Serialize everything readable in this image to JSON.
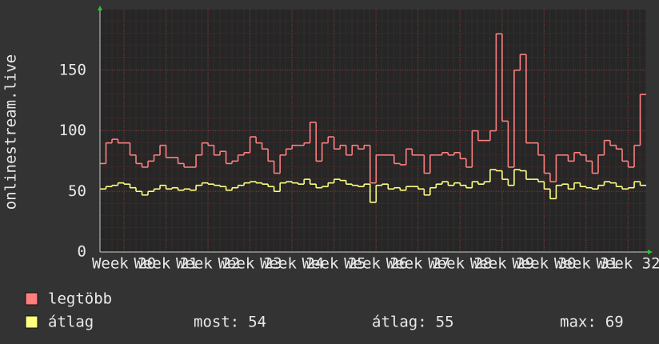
{
  "chart_data": {
    "type": "line",
    "y_label": "onlinestream.live",
    "x": [
      0,
      1,
      2,
      3,
      4,
      5,
      6,
      7,
      8,
      9,
      10,
      11,
      12,
      13,
      14,
      15,
      16,
      17,
      18,
      19,
      20,
      21,
      22,
      23,
      24,
      25,
      26,
      27,
      28,
      29,
      30,
      31,
      32,
      33,
      34,
      35,
      36,
      37,
      38,
      39,
      40,
      41,
      42,
      43,
      44,
      45,
      46,
      47,
      48,
      49,
      50,
      51,
      52,
      53,
      54,
      55,
      56,
      57,
      58,
      59,
      60,
      61,
      62,
      63,
      64,
      65,
      66,
      67,
      68,
      69,
      70,
      71,
      72,
      73,
      74,
      75,
      76,
      77,
      78,
      79,
      80,
      81,
      82,
      83,
      84,
      85,
      86,
      87,
      88,
      89,
      90
    ],
    "xlim": [
      0,
      91
    ],
    "xticks": [
      {
        "value": 4,
        "label": "Week 20"
      },
      {
        "value": 11,
        "label": "Week 21"
      },
      {
        "value": 18,
        "label": "Week 22"
      },
      {
        "value": 25,
        "label": "Week 23"
      },
      {
        "value": 32,
        "label": "Week 24"
      },
      {
        "value": 39,
        "label": "Week 25"
      },
      {
        "value": 46,
        "label": "Week 26"
      },
      {
        "value": 53,
        "label": "Week 27"
      },
      {
        "value": 60,
        "label": "Week 28"
      },
      {
        "value": 67,
        "label": "Week 29"
      },
      {
        "value": 74,
        "label": "Week 30"
      },
      {
        "value": 81,
        "label": "Week 31"
      },
      {
        "value": 88,
        "label": "Week 32"
      }
    ],
    "ylim": [
      0,
      200
    ],
    "yticks": [
      0,
      50,
      100,
      150
    ],
    "grid": true,
    "series": [
      {
        "name": "legtöbb",
        "color": "#ff7f7f",
        "values": [
          73,
          90,
          93,
          90,
          90,
          80,
          73,
          70,
          75,
          80,
          88,
          78,
          78,
          73,
          70,
          70,
          80,
          90,
          88,
          80,
          83,
          73,
          75,
          80,
          82,
          95,
          90,
          85,
          75,
          65,
          80,
          85,
          88,
          88,
          90,
          107,
          75,
          90,
          95,
          85,
          88,
          80,
          88,
          85,
          88,
          57,
          80,
          80,
          80,
          73,
          72,
          85,
          80,
          80,
          65,
          80,
          80,
          82,
          80,
          82,
          77,
          70,
          100,
          92,
          92,
          100,
          180,
          108,
          70,
          150,
          163,
          90,
          90,
          80,
          65,
          58,
          80,
          80,
          75,
          82,
          80,
          75,
          65,
          80,
          92,
          88,
          85,
          75,
          70,
          88,
          130
        ]
      },
      {
        "name": "átlag",
        "color": "#ffff80",
        "values": [
          52,
          54,
          55,
          57,
          56,
          53,
          50,
          47,
          50,
          52,
          55,
          52,
          53,
          51,
          52,
          51,
          55,
          57,
          56,
          55,
          54,
          51,
          53,
          55,
          57,
          58,
          57,
          56,
          54,
          50,
          57,
          58,
          57,
          56,
          60,
          56,
          53,
          54,
          57,
          60,
          59,
          56,
          55,
          54,
          56,
          41,
          55,
          56,
          52,
          53,
          51,
          54,
          54,
          52,
          47,
          53,
          56,
          58,
          55,
          57,
          55,
          53,
          58,
          56,
          58,
          68,
          67,
          60,
          55,
          68,
          67,
          60,
          60,
          58,
          52,
          44,
          55,
          56,
          52,
          57,
          54,
          53,
          52,
          55,
          58,
          57,
          54,
          52,
          53,
          58,
          55
        ]
      }
    ],
    "stats": [
      {
        "label": "most:",
        "value": 54
      },
      {
        "label": "átlag:",
        "value": 55
      },
      {
        "label": "max:",
        "value": 69
      }
    ]
  }
}
